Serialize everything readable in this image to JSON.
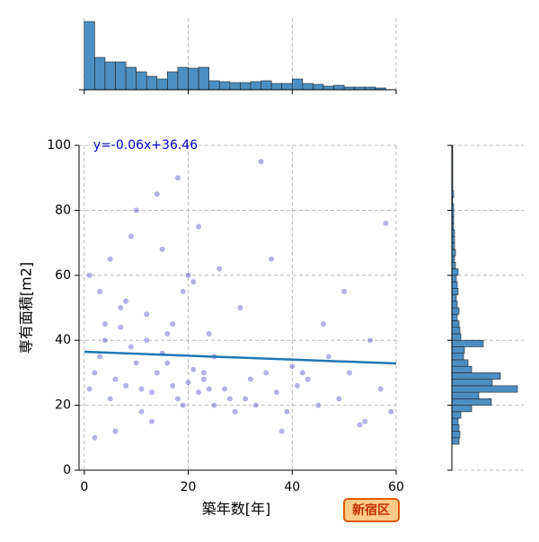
{
  "chart_data": {
    "type": "joint",
    "x_label": "築年数[年]",
    "y_label": "専有面積[m2]",
    "badge": "新宿区",
    "xlim": [
      -1,
      60
    ],
    "xticks": [
      0,
      20,
      40,
      60
    ],
    "ylim": [
      0,
      100
    ],
    "yticks": [
      0,
      20,
      40,
      60,
      80,
      100
    ],
    "grid": true,
    "scatter": {
      "color": "#2222bb",
      "x": [
        1,
        2,
        3,
        4,
        5,
        6,
        7,
        8,
        9,
        10,
        11,
        12,
        13,
        14,
        15,
        16,
        17,
        18,
        19,
        20,
        21,
        22,
        23,
        24,
        25,
        1,
        3,
        5,
        7,
        9,
        11,
        13,
        15,
        17,
        19,
        21,
        23,
        25,
        27,
        29,
        31,
        33,
        35,
        37,
        39,
        41,
        43,
        45,
        47,
        49,
        51,
        53,
        55,
        57,
        59,
        2,
        6,
        10,
        14,
        18,
        22,
        26,
        30,
        34,
        38,
        42,
        46,
        50,
        54,
        58,
        4,
        8,
        12,
        16,
        20,
        24,
        28,
        32,
        36,
        40
      ],
      "y": [
        25,
        30,
        35,
        40,
        22,
        28,
        44,
        26,
        38,
        33,
        25,
        48,
        24,
        30,
        36,
        42,
        26,
        22,
        55,
        27,
        31,
        24,
        30,
        25,
        20,
        60,
        55,
        65,
        50,
        72,
        18,
        15,
        68,
        45,
        20,
        58,
        28,
        35,
        25,
        18,
        22,
        20,
        30,
        24,
        18,
        26,
        28,
        20,
        35,
        22,
        30,
        14,
        40,
        25,
        18,
        10,
        12,
        80,
        85,
        90,
        75,
        62,
        50,
        95,
        12,
        30,
        45,
        55,
        15,
        76,
        45,
        52,
        40,
        33,
        60,
        42,
        22,
        28,
        65,
        32
      ]
    },
    "fit": {
      "label": "y=-0.06x+36.46",
      "color": "#1f77b4",
      "x": [
        0,
        60
      ],
      "y": [
        36.46,
        32.86
      ]
    },
    "top_hist": {
      "color": "#4c8fc2",
      "ylim": [
        0,
        80
      ],
      "bins": [
        0,
        2,
        4,
        6,
        8,
        10,
        12,
        14,
        16,
        18,
        20,
        22,
        24,
        26,
        28,
        30,
        32,
        34,
        36,
        38,
        40,
        42,
        44,
        46,
        48,
        50,
        52,
        54,
        56,
        58,
        60
      ],
      "counts": [
        76,
        36,
        31,
        31,
        25,
        20,
        15,
        12,
        20,
        25,
        24,
        25,
        10,
        9,
        8,
        8,
        9,
        10,
        7,
        7,
        12,
        7,
        6,
        4,
        5,
        3,
        3,
        3,
        2,
        0
      ]
    },
    "right_hist": {
      "color": "#4c8fc2",
      "xlim": [
        0,
        80
      ],
      "bins": [
        8,
        10,
        12,
        14,
        16,
        18,
        20,
        22,
        24,
        26,
        28,
        30,
        32,
        34,
        36,
        38,
        40,
        42,
        44,
        46,
        48,
        50,
        52,
        54,
        56,
        58,
        60,
        62,
        64,
        66,
        68,
        70,
        72,
        74,
        76,
        78,
        80,
        82,
        84,
        86,
        88,
        90,
        92,
        94,
        96,
        98,
        100
      ],
      "counts": [
        8,
        9,
        8,
        7,
        10,
        22,
        44,
        30,
        73,
        45,
        54,
        22,
        18,
        13,
        14,
        35,
        10,
        9,
        8,
        6,
        8,
        6,
        5,
        7,
        6,
        5,
        7,
        4,
        3,
        4,
        3,
        3,
        3,
        2,
        2,
        2,
        2,
        1,
        2,
        1,
        1,
        1,
        1,
        1,
        1,
        1
      ]
    }
  }
}
